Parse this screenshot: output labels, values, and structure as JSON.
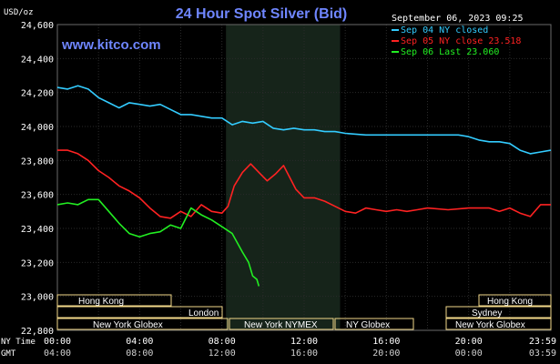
{
  "header": {
    "title": "24 Hour Spot Silver (Bid)",
    "datetime": "September 06, 2023 09:25",
    "unit_label": "USD/oz",
    "website": "www.kitco.com"
  },
  "sessions": {
    "hong_kong": "Hong Kong",
    "london": "London",
    "new_york_globex": "New York Globex",
    "new_york_nymex": "New York NYMEX",
    "ny_globex": "NY Globex",
    "sydney": "Sydney"
  },
  "time_rows": {
    "ny_label": "NY Time",
    "gmt_label": "GMT"
  },
  "colors": {
    "background": "#000000",
    "shade": "#16241a",
    "grid": "#2a2a2a",
    "session_bar": "#f2d98a",
    "series_sep04": "#33ccff",
    "series_sep05": "#ff2222",
    "series_sep06": "#22ee22"
  },
  "chart_data": {
    "type": "line",
    "title": "24 Hour Spot Silver (Bid)",
    "ylabel": "USD/oz",
    "ylim": [
      22.8,
      24.6
    ],
    "y_ticks": [
      "24,600",
      "24,400",
      "24,200",
      "24,000",
      "23,800",
      "23,600",
      "23,400",
      "23,200",
      "23,000",
      "22,800"
    ],
    "xlim": [
      0,
      24
    ],
    "x_ticks": [
      {
        "hour": 0,
        "ny": "00:00",
        "gmt": "04:00"
      },
      {
        "hour": 4,
        "ny": "04:00",
        "gmt": "08:00"
      },
      {
        "hour": 8,
        "ny": "08:00",
        "gmt": "12:00"
      },
      {
        "hour": 12,
        "ny": "12:00",
        "gmt": "16:00"
      },
      {
        "hour": 16,
        "ny": "16:00",
        "gmt": "20:00"
      },
      {
        "hour": 20,
        "ny": "20:00",
        "gmt": "00:00"
      },
      {
        "hour": 24,
        "ny": "23:59",
        "gmt": "03:59"
      }
    ],
    "shaded_range": [
      8.2,
      13.75
    ],
    "grid": true,
    "legend_position": "top-right",
    "series": [
      {
        "name": "Sep 04 NY closed",
        "color": "#33ccff",
        "x": [
          0,
          0.5,
          1.0,
          1.5,
          2.0,
          2.5,
          3.0,
          3.5,
          4.0,
          4.5,
          5.0,
          5.5,
          6.0,
          6.5,
          7.0,
          7.5,
          8.0,
          8.5,
          9.0,
          9.5,
          10.0,
          10.5,
          11.0,
          11.5,
          12.0,
          12.5,
          13.0,
          13.5,
          14.0,
          15.0,
          16.0,
          17.0,
          18.0,
          19.0,
          19.5,
          20.0,
          20.5,
          21.0,
          21.5,
          22.0,
          22.5,
          23.0,
          23.5,
          24.0
        ],
        "y": [
          24.23,
          24.22,
          24.24,
          24.22,
          24.17,
          24.14,
          24.11,
          24.14,
          24.13,
          24.12,
          24.13,
          24.1,
          24.07,
          24.07,
          24.06,
          24.05,
          24.05,
          24.01,
          24.03,
          24.02,
          24.03,
          23.99,
          23.98,
          23.99,
          23.98,
          23.98,
          23.97,
          23.97,
          23.96,
          23.95,
          23.95,
          23.95,
          23.95,
          23.95,
          23.95,
          23.94,
          23.92,
          23.91,
          23.91,
          23.9,
          23.86,
          23.84,
          23.85,
          23.86
        ]
      },
      {
        "name": "Sep 05 NY close 23.518",
        "color": "#ff2222",
        "x": [
          0,
          0.5,
          1.0,
          1.5,
          2.0,
          2.5,
          3.0,
          3.5,
          4.0,
          4.5,
          5.0,
          5.5,
          6.0,
          6.5,
          7.0,
          7.5,
          8.0,
          8.3,
          8.6,
          9.0,
          9.4,
          9.8,
          10.2,
          10.6,
          11.0,
          11.3,
          11.6,
          12.0,
          12.5,
          13.0,
          13.5,
          14.0,
          14.5,
          15.0,
          15.5,
          16.0,
          16.5,
          17.0,
          17.5,
          18.0,
          19.0,
          20.0,
          21.0,
          21.5,
          22.0,
          22.5,
          23.0,
          23.5,
          24.0
        ],
        "y": [
          23.86,
          23.86,
          23.84,
          23.8,
          23.74,
          23.7,
          23.65,
          23.62,
          23.58,
          23.52,
          23.47,
          23.46,
          23.5,
          23.47,
          23.54,
          23.5,
          23.49,
          23.53,
          23.65,
          23.73,
          23.78,
          23.73,
          23.68,
          23.72,
          23.77,
          23.7,
          23.63,
          23.58,
          23.58,
          23.56,
          23.53,
          23.5,
          23.49,
          23.52,
          23.51,
          23.5,
          23.51,
          23.5,
          23.51,
          23.52,
          23.51,
          23.52,
          23.52,
          23.5,
          23.52,
          23.49,
          23.47,
          23.54,
          23.54
        ]
      },
      {
        "name": "Sep 06 Last 23.060",
        "color": "#22ee22",
        "x": [
          0,
          0.5,
          1.0,
          1.5,
          2.0,
          2.5,
          3.0,
          3.5,
          4.0,
          4.5,
          5.0,
          5.5,
          6.0,
          6.5,
          7.0,
          7.5,
          8.0,
          8.5,
          9.0,
          9.3,
          9.5,
          9.7,
          9.8
        ],
        "y": [
          23.54,
          23.55,
          23.54,
          23.57,
          23.57,
          23.5,
          23.43,
          23.37,
          23.35,
          23.37,
          23.38,
          23.42,
          23.4,
          23.52,
          23.48,
          23.45,
          23.41,
          23.37,
          23.26,
          23.2,
          23.12,
          23.1,
          23.06
        ]
      }
    ]
  }
}
